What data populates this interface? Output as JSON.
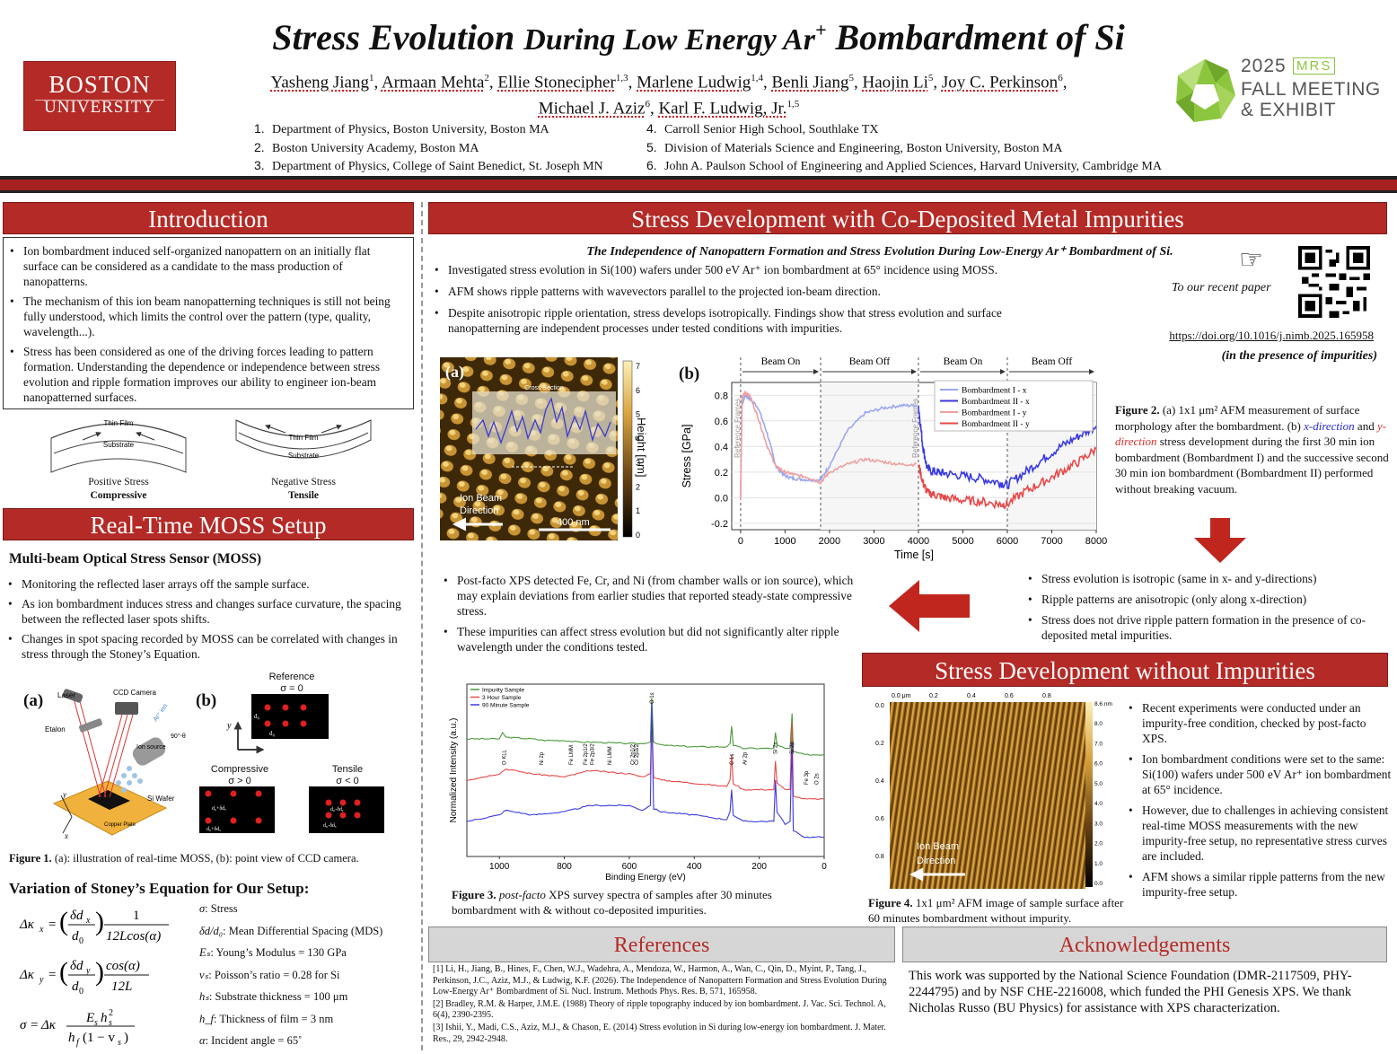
{
  "header": {
    "title_main": "Stress Evolution",
    "title_mid": "During Low Energy Ar",
    "title_sup": "+",
    "title_end": "Bombardment of Si",
    "bu_logo_line1": "BOSTON",
    "bu_logo_line2": "UNIVERSITY",
    "authors_line1": [
      {
        "name": "Yasheng Jiang",
        "sup": "1"
      },
      {
        "name": "Armaan Mehta",
        "sup": "2"
      },
      {
        "name": "Ellie Stonecipher",
        "sup": "1,3"
      },
      {
        "name": "Marlene Ludwig",
        "sup": "1,4"
      },
      {
        "name": "Benli Jiang",
        "sup": "5"
      },
      {
        "name": "Haojin Li",
        "sup": "5"
      },
      {
        "name": "Joy C. Perkinson",
        "sup": "6"
      }
    ],
    "authors_line2": [
      {
        "name": "Michael J. Aziz",
        "sup": "6"
      },
      {
        "name": "Karl F. Ludwig, Jr.",
        "sup": "1,5"
      }
    ],
    "affiliations_left": [
      {
        "n": "1.",
        "text": "Department of Physics, Boston University, Boston MA"
      },
      {
        "n": "2.",
        "text": "Boston University Academy, Boston MA"
      },
      {
        "n": "3.",
        "text": "Department of Physics, College of Saint Benedict, St. Joseph MN"
      }
    ],
    "affiliations_right": [
      {
        "n": "4.",
        "text": "Carroll Senior High School, Southlake TX"
      },
      {
        "n": "5.",
        "text": "Division of Materials Science and Engineering, Boston University, Boston MA"
      },
      {
        "n": "6.",
        "text": "John A. Paulson School of Engineering and Applied Sciences, Harvard University, Cambridge MA"
      }
    ],
    "mrs_year": "2025",
    "mrs_badge": "MRS",
    "mrs_line1": "FALL MEETING",
    "mrs_line2": "& EXHIBIT"
  },
  "introduction": {
    "heading": "Introduction",
    "bullets": [
      "Ion bombardment induced self-organized nanopattern on an initially flat surface can be considered as a candidate to the mass production of nanopatterns.",
      "The mechanism of this ion beam nanopatterning techniques is still not being fully understood, which limits the control over the pattern (type, quality, wavelength...).",
      "Stress has been considered as one of the driving forces leading to pattern formation. Understanding the dependence or independence between stress evolution and ripple formation improves our ability to engineer ion-beam nanopatterned surfaces."
    ],
    "diagram_film": "Thin Film",
    "diagram_substrate": "Substrate",
    "positive_label": "Positive Stress",
    "positive_bold": "Compressive",
    "negative_label": "Negative Stress",
    "negative_bold": "Tensile"
  },
  "moss": {
    "heading": "Real-Time MOSS Setup",
    "subheading": "Multi-beam Optical Stress Sensor (MOSS)",
    "bullets": [
      "Monitoring the reflected laser arrays off the sample surface.",
      "As ion bombardment induces stress and changes surface curvature, the spacing between the reflected laser spots shifts.",
      "Changes in spot spacing recorded by MOSS can be correlated with changes in stress through the Stoney’s Equation."
    ],
    "fig_a": "(a)",
    "fig_b": "(b)",
    "laser": "Laser",
    "ccd": "CCD Camera",
    "etalon": "Etalon",
    "ar_ion": "Ar⁺ ion",
    "ion_source": "Ion source",
    "angle": "90°-θ",
    "si_wafer": "Si Wafer",
    "copper_plate": "Copper Plate",
    "axis_x": "x",
    "axis_y": "y",
    "reference": "Reference",
    "reference_sigma": "σ = 0",
    "compressive": "Compressive",
    "compressive_sigma": "σ > 0",
    "tensile": "Tensile",
    "tensile_sigma": "σ < 0",
    "d0": "d₀",
    "d0_plus": "d₀+δdᵧ",
    "d0_plus_x": "d₀+δdₓ",
    "d0_minus": "d₀-δdᵧ",
    "d0_minus_x": "d₀-δdₓ",
    "figure_caption_bold": "Figure 1.",
    "figure_caption": " (a): illustration of real-time MOSS, (b): point view of CCD camera."
  },
  "stoney": {
    "heading": "Variation of Stoney’s Equation for Our Setup:",
    "definitions": [
      {
        "sym": "σ",
        "text": ": Stress"
      },
      {
        "sym": "δd/d₀",
        "text": ": Mean Differential Spacing (MDS)"
      },
      {
        "sym": "Eₛ",
        "text": ": Young’s Modulus = 130 GPa"
      },
      {
        "sym": "vₛ",
        "text": ": Poisson’s ratio = 0.28 for Si"
      },
      {
        "sym": "hₛ",
        "text": ": Substrate thickness = 100 μm"
      },
      {
        "sym": "h_f",
        "text": ": Thickness of film = 3 nm"
      },
      {
        "sym": "α",
        "text": ": Incident angle = 65˚"
      }
    ]
  },
  "stress_impurities": {
    "heading": "Stress Development with Co-Deposited Metal Impurities",
    "paper_title": "The Independence of Nanopattern Formation and Stress Evolution During Low-Energy Ar⁺ Bombardment of Si.",
    "bullets": [
      "Investigated stress evolution in Si(100) wafers under 500 eV Ar⁺ ion bombardment at 65° incidence using MOSS.",
      "AFM shows ripple patterns with wavevectors parallel to the projected ion-beam direction.",
      "Despite anisotropic ripple orientation, stress develops isotropically. Findings show that stress evolution and surface nanopatterning are independent processes under tested conditions with impurities."
    ],
    "recent_paper": "To our recent paper",
    "doi": "https://doi.org/10.1016/j.nimb.2025.165958",
    "presence": "(in the presence of impurities)",
    "fig2_caption_bold": "Figure 2.",
    "fig2_caption": " (a) 1x1 μm² AFM measurement of surface morphology after the bombardment. (b) x-direction and y-direction stress development during the first 30 min ion bombardment (Bombardment I) and the successive second 30 min ion bombardment (Bombardment II) performed without breaking vacuum.",
    "afm_label_a": "(a)",
    "afm_label_b": "(b)",
    "afm_inset_title": "Cross Section",
    "afm_ion_beam": "Ion Beam Direction",
    "afm_scale": "400 nm",
    "afm_cbar_label": "Height [nm]",
    "afm_cbar_ticks": [
      "7",
      "6",
      "5",
      "4",
      "3",
      "2",
      "1",
      "0"
    ],
    "right_bullets": [
      "Stress evolution is isotropic (same in x- and y-directions)",
      "Ripple patterns are anisotropic (only along x-direction)",
      "Stress does not drive ripple pattern formation in the presence of co-deposited metal impurities."
    ],
    "xps_bullets": [
      "Post-facto XPS detected Fe, Cr, and Ni (from chamber walls or ion source), which may explain deviations from earlier studies that reported steady-state compressive stress.",
      "These impurities can affect stress evolution but did not significantly alter ripple wavelength under the conditions tested."
    ],
    "fig3_caption_bold": "Figure 3.",
    "fig3_caption": " post-facto XPS survey spectra of samples after 30 minutes bombardment with & without co-deposited impurities."
  },
  "no_impurities": {
    "heading": "Stress Development without Impurities",
    "bullets": [
      "Recent experiments were conducted under an impurity-free condition, checked by post-facto XPS.",
      "Ion bombardment conditions were set to the same: Si(100) wafers under 500 eV Ar⁺ ion bombardment at 65° incidence.",
      "However, due to challenges in achieving consistent real-time MOSS measurements with the new impurity-free setup, no representative stress curves are included.",
      "AFM shows a similar ripple patterns from the new impurity-free setup."
    ],
    "afm_ion_beam": "Ion Beam Direction",
    "afm_top_ticks": [
      "0.0 μm",
      "0.2",
      "0.4",
      "0.6",
      "0.8"
    ],
    "afm_left_ticks": [
      "0.0",
      "0.2",
      "0.4",
      "0.6",
      "0.8"
    ],
    "afm_cbar_ticks": [
      "8.6 nm",
      "8.0",
      "7.0",
      "6.0",
      "5.0",
      "4.0",
      "3.0",
      "2.0",
      "1.0",
      "0.0"
    ],
    "fig4_caption_bold": "Figure 4.",
    "fig4_caption": " 1x1 μm² AFM image of sample surface after 60 minutes bombardment without impurity."
  },
  "references": {
    "heading": "References",
    "items": [
      "[1] Li, H., Jiang, B., Hines, F., Chen, W.J., Wadehra, A., Mendoza, W., Harmon, A., Wan, C., Qin, D., Myint, P., Tang, J., Perkinson, J.C., Aziz, M.J., & Ludwig, K.F. (2026). The Independence of Nanopattern Formation and Stress Evolution During Low-Energy Ar⁺ Bombardment of Si. Nucl. Instrum. Methods Phys. Res. B, 571, 165958.",
      "[2] Bradley, R.M. & Harper, J.M.E. (1988) Theory of ripple topography induced by ion bombardment. J. Vac. Sci. Technol. A, 6(4), 2390-2395.",
      "[3] Ishii, Y., Madi, C.S., Aziz, M.J., & Chason, E. (2014) Stress evolution in Si during low-energy ion bombardment. J. Mater. Res., 29, 2942-2948."
    ]
  },
  "acknowledgements": {
    "heading": "Acknowledgements",
    "text": "This work was supported by the National Science Foundation (DMR-2117509, PHY-2244795) and by NSF CHE-2216008, which funded the PHI Genesis XPS. We thank Nicholas Russo (BU Physics) for assistance with XPS characterization."
  },
  "colors": {
    "accent": "#b42a26",
    "blue_series": "#3a3ae0",
    "red_series": "#e84848",
    "green_series": "#4a9a3a"
  },
  "chart_data": [
    {
      "type": "line",
      "id": "stress",
      "xlabel": "Time [s]",
      "ylabel": "Stress [GPa]",
      "xlim": [
        -200,
        8000
      ],
      "ylim": [
        -0.25,
        0.9
      ],
      "xticks": [
        0,
        1000,
        2000,
        3000,
        4000,
        5000,
        6000,
        7000,
        8000
      ],
      "yticks": [
        -0.2,
        0.0,
        0.2,
        0.4,
        0.6,
        0.8
      ],
      "phases": [
        {
          "label": "Beam On",
          "from": 0,
          "to": 1800
        },
        {
          "label": "Beam Off",
          "from": 1800,
          "to": 4000
        },
        {
          "label": "Beam On",
          "from": 4000,
          "to": 6000
        },
        {
          "label": "Beam Off",
          "from": 6000,
          "to": 8000
        }
      ],
      "annotations": [
        "Reference Frames",
        "Reference Frames"
      ],
      "legend_position": "top-right",
      "series": [
        {
          "name": "Bombardment I - x",
          "color": "#9aa8f0",
          "x": [
            0,
            30,
            100,
            200,
            400,
            600,
            800,
            1000,
            1200,
            1500,
            1800,
            2000,
            2400,
            2800,
            3200,
            3600,
            3950
          ],
          "y": [
            0,
            0.72,
            0.8,
            0.78,
            0.7,
            0.5,
            0.24,
            0.17,
            0.15,
            0.14,
            0.14,
            0.25,
            0.52,
            0.66,
            0.7,
            0.72,
            0.72
          ]
        },
        {
          "name": "Bombardment II - x",
          "color": "#3a3ae0",
          "x": [
            4000,
            4100,
            4200,
            4400,
            4600,
            5000,
            5400,
            5800,
            6000,
            6400,
            6800,
            7200,
            7600,
            8000
          ],
          "y": [
            0.72,
            0.4,
            0.22,
            0.2,
            0.19,
            0.17,
            0.15,
            0.12,
            0.1,
            0.2,
            0.3,
            0.4,
            0.48,
            0.56
          ]
        },
        {
          "name": "Bombardment I - y",
          "color": "#f0a0a0",
          "x": [
            0,
            30,
            100,
            200,
            400,
            600,
            800,
            1000,
            1200,
            1500,
            1800,
            2000,
            2400,
            2800,
            3200,
            3600,
            3950
          ],
          "y": [
            0,
            0.78,
            0.82,
            0.8,
            0.62,
            0.4,
            0.24,
            0.2,
            0.18,
            0.16,
            0.12,
            0.2,
            0.26,
            0.3,
            0.28,
            0.26,
            0.26
          ]
        },
        {
          "name": "Bombardment II - y",
          "color": "#e84848",
          "x": [
            4000,
            4100,
            4200,
            4400,
            4600,
            5000,
            5400,
            5800,
            6000,
            6400,
            6800,
            7200,
            7600,
            8000
          ],
          "y": [
            0.26,
            0.12,
            0.04,
            0.02,
            0.0,
            -0.02,
            -0.03,
            -0.05,
            -0.05,
            0.05,
            0.12,
            0.2,
            0.28,
            0.38
          ]
        }
      ]
    },
    {
      "type": "line",
      "id": "xps",
      "xlabel": "Binding Energy (eV)",
      "ylabel": "Normalized Intensity (a.u.)",
      "xlim": [
        1100,
        0
      ],
      "xticks": [
        1000,
        800,
        600,
        400,
        200,
        0
      ],
      "legend_position": "top-left",
      "peak_labels": [
        "O KLL",
        "Ni 2p",
        "Fe LMM",
        "Fe 2p1/2",
        "Fe 2p3/2",
        "Ni LMM",
        "Cr 2p1/2",
        "Cr 2p3/2",
        "O 1s",
        "C 1s",
        "Ar 2p",
        "Si 2s",
        "Si 2p",
        "Fe 3p",
        "O 2s"
      ],
      "series": [
        {
          "name": "Impurity Sample",
          "color": "#4a9a3a",
          "x": [
            1100,
            1000,
            990,
            980,
            900,
            860,
            800,
            760,
            720,
            600,
            560,
            535,
            531,
            525,
            500,
            400,
            300,
            290,
            285,
            280,
            250,
            200,
            155,
            150,
            145,
            120,
            105,
            99,
            95,
            60,
            20,
            0
          ],
          "y": [
            0.72,
            0.72,
            0.76,
            0.73,
            0.72,
            0.71,
            0.71,
            0.7,
            0.7,
            0.69,
            0.69,
            0.7,
            0.98,
            0.7,
            0.68,
            0.67,
            0.67,
            0.69,
            0.8,
            0.68,
            0.66,
            0.66,
            0.66,
            0.76,
            0.68,
            0.66,
            0.66,
            0.88,
            0.64,
            0.62,
            0.62,
            0.62
          ]
        },
        {
          "name": "3 Hour Sample",
          "color": "#e84848",
          "x": [
            1100,
            1000,
            980,
            900,
            800,
            720,
            600,
            560,
            535,
            531,
            525,
            500,
            400,
            300,
            290,
            285,
            280,
            250,
            200,
            155,
            150,
            145,
            120,
            105,
            99,
            95,
            60,
            20,
            0
          ],
          "y": [
            0.46,
            0.5,
            0.53,
            0.5,
            0.48,
            0.52,
            0.5,
            0.48,
            0.5,
            0.88,
            0.48,
            0.46,
            0.44,
            0.42,
            0.46,
            0.62,
            0.44,
            0.4,
            0.4,
            0.4,
            0.58,
            0.44,
            0.4,
            0.4,
            0.82,
            0.36,
            0.34,
            0.34,
            0.34
          ]
        },
        {
          "name": "90 Minute Sample",
          "color": "#3a3ae0",
          "x": [
            1100,
            1000,
            980,
            900,
            800,
            720,
            600,
            560,
            535,
            531,
            525,
            500,
            400,
            300,
            290,
            285,
            280,
            250,
            200,
            155,
            150,
            145,
            120,
            105,
            99,
            95,
            60,
            20,
            0
          ],
          "y": [
            0.2,
            0.24,
            0.27,
            0.24,
            0.26,
            0.3,
            0.3,
            0.27,
            0.3,
            0.95,
            0.28,
            0.26,
            0.24,
            0.21,
            0.26,
            0.4,
            0.24,
            0.2,
            0.2,
            0.2,
            0.46,
            0.26,
            0.18,
            0.2,
            0.7,
            0.14,
            0.1,
            0.1,
            0.1
          ]
        }
      ]
    }
  ]
}
